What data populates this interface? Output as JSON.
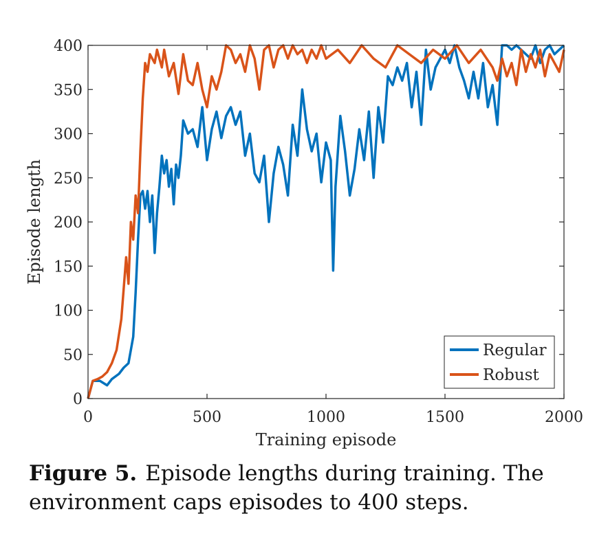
{
  "caption": {
    "label": "Figure 5.",
    "text": "Episode lengths during training. The environment caps episodes to 400 steps."
  },
  "chart_data": {
    "type": "line",
    "xlabel": "Training episode",
    "ylabel": "Episode length",
    "xlim": [
      0,
      2000
    ],
    "ylim": [
      0,
      400
    ],
    "xticks": [
      0,
      500,
      1000,
      1500,
      2000
    ],
    "yticks": [
      0,
      50,
      100,
      150,
      200,
      250,
      300,
      350,
      400
    ],
    "grid": false,
    "legend_position": "bottom-right",
    "series": [
      {
        "name": "Regular",
        "color": "#0072BD",
        "x": [
          0,
          20,
          50,
          80,
          100,
          130,
          150,
          170,
          190,
          200,
          210,
          220,
          230,
          240,
          250,
          260,
          270,
          280,
          290,
          300,
          310,
          320,
          330,
          340,
          350,
          360,
          370,
          380,
          390,
          400,
          420,
          440,
          460,
          480,
          500,
          520,
          540,
          560,
          580,
          600,
          620,
          640,
          660,
          680,
          700,
          720,
          740,
          760,
          780,
          800,
          820,
          840,
          860,
          880,
          900,
          920,
          940,
          960,
          980,
          1000,
          1020,
          1030,
          1040,
          1060,
          1080,
          1100,
          1120,
          1140,
          1160,
          1180,
          1200,
          1220,
          1240,
          1260,
          1280,
          1300,
          1320,
          1340,
          1360,
          1380,
          1400,
          1420,
          1440,
          1460,
          1480,
          1500,
          1520,
          1540,
          1560,
          1580,
          1600,
          1620,
          1640,
          1660,
          1680,
          1700,
          1720,
          1740,
          1760,
          1780,
          1800,
          1820,
          1840,
          1860,
          1880,
          1900,
          1920,
          1940,
          1960,
          1980,
          2000
        ],
        "values": [
          0,
          20,
          20,
          15,
          22,
          28,
          35,
          40,
          70,
          120,
          180,
          230,
          235,
          215,
          235,
          200,
          230,
          165,
          210,
          240,
          275,
          255,
          270,
          240,
          260,
          220,
          265,
          250,
          275,
          315,
          300,
          305,
          285,
          330,
          270,
          305,
          325,
          295,
          320,
          330,
          310,
          325,
          275,
          300,
          255,
          245,
          275,
          200,
          255,
          285,
          265,
          230,
          310,
          275,
          350,
          305,
          280,
          300,
          245,
          290,
          270,
          145,
          240,
          320,
          280,
          230,
          260,
          305,
          270,
          325,
          250,
          330,
          290,
          365,
          355,
          375,
          360,
          380,
          330,
          370,
          310,
          395,
          350,
          375,
          385,
          395,
          380,
          400,
          375,
          360,
          340,
          370,
          340,
          380,
          330,
          355,
          310,
          400,
          400,
          395,
          400,
          395,
          390,
          385,
          400,
          380,
          395,
          400,
          390,
          395,
          400
        ]
      },
      {
        "name": "Robust",
        "color": "#D95319",
        "x": [
          0,
          20,
          40,
          60,
          80,
          100,
          120,
          140,
          160,
          170,
          180,
          190,
          200,
          210,
          220,
          230,
          240,
          250,
          260,
          270,
          280,
          290,
          300,
          310,
          320,
          340,
          360,
          380,
          400,
          420,
          440,
          460,
          480,
          500,
          520,
          540,
          560,
          580,
          600,
          620,
          640,
          660,
          680,
          700,
          720,
          740,
          760,
          780,
          800,
          820,
          840,
          860,
          880,
          900,
          920,
          940,
          960,
          980,
          1000,
          1050,
          1100,
          1150,
          1200,
          1250,
          1300,
          1350,
          1400,
          1450,
          1500,
          1550,
          1600,
          1650,
          1700,
          1720,
          1740,
          1760,
          1780,
          1800,
          1820,
          1840,
          1860,
          1880,
          1900,
          1920,
          1940,
          1960,
          1980,
          2000
        ],
        "values": [
          0,
          20,
          22,
          25,
          30,
          40,
          55,
          90,
          160,
          130,
          200,
          180,
          230,
          210,
          280,
          340,
          380,
          370,
          390,
          385,
          380,
          395,
          385,
          375,
          395,
          365,
          380,
          345,
          390,
          360,
          355,
          380,
          350,
          330,
          365,
          350,
          370,
          400,
          395,
          380,
          390,
          370,
          400,
          385,
          350,
          395,
          400,
          375,
          395,
          400,
          385,
          400,
          390,
          395,
          380,
          395,
          385,
          400,
          385,
          395,
          380,
          400,
          385,
          375,
          400,
          390,
          380,
          395,
          385,
          400,
          380,
          395,
          375,
          360,
          385,
          365,
          380,
          355,
          395,
          370,
          390,
          375,
          395,
          365,
          390,
          380,
          370,
          395
        ]
      }
    ]
  }
}
